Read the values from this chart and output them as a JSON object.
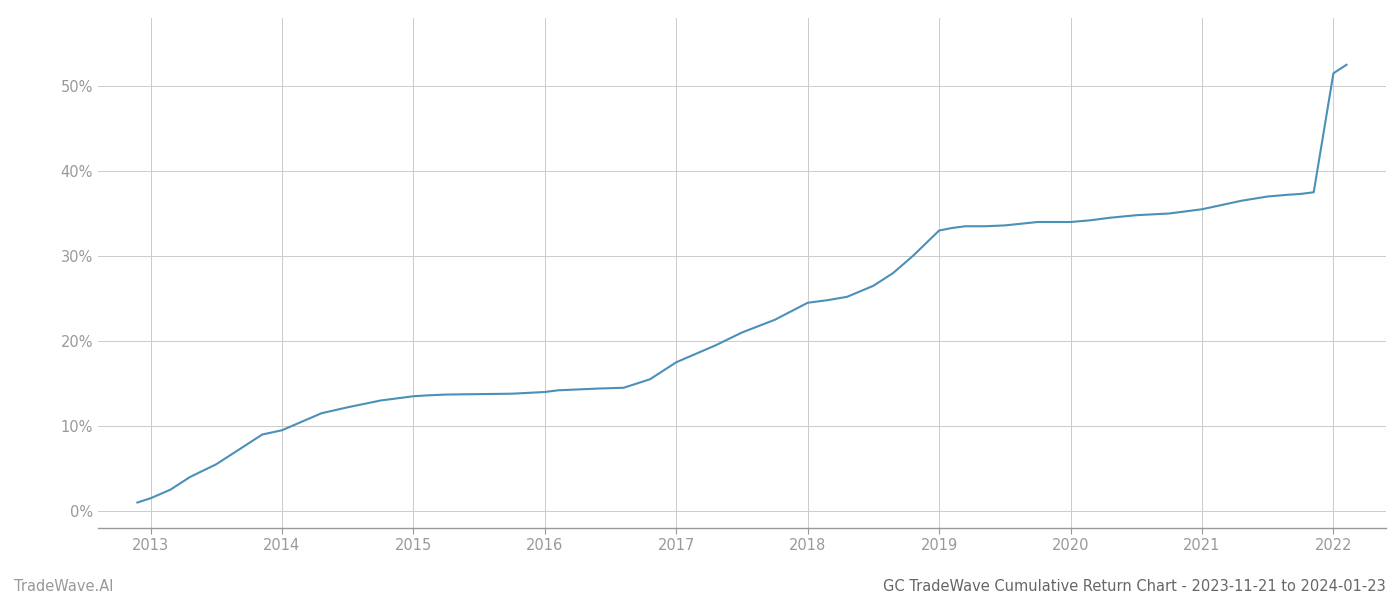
{
  "title": "GC TradeWave Cumulative Return Chart - 2023-11-21 to 2024-01-23",
  "watermark_left": "TradeWave.AI",
  "line_color": "#4a90b8",
  "background_color": "#ffffff",
  "grid_color": "#cccccc",
  "x_values": [
    2012.9,
    2013.0,
    2013.15,
    2013.3,
    2013.5,
    2013.7,
    2013.85,
    2014.0,
    2014.15,
    2014.3,
    2014.5,
    2014.75,
    2015.0,
    2015.1,
    2015.25,
    2015.5,
    2015.75,
    2016.0,
    2016.1,
    2016.25,
    2016.4,
    2016.6,
    2016.8,
    2017.0,
    2017.15,
    2017.3,
    2017.5,
    2017.75,
    2018.0,
    2018.15,
    2018.3,
    2018.5,
    2018.65,
    2018.8,
    2019.0,
    2019.1,
    2019.2,
    2019.35,
    2019.5,
    2019.75,
    2020.0,
    2020.15,
    2020.3,
    2020.5,
    2020.75,
    2021.0,
    2021.15,
    2021.3,
    2021.5,
    2021.65,
    2021.75,
    2021.85,
    2022.0,
    2022.1
  ],
  "y_values": [
    1.0,
    1.5,
    2.5,
    4.0,
    5.5,
    7.5,
    9.0,
    9.5,
    10.5,
    11.5,
    12.2,
    13.0,
    13.5,
    13.6,
    13.7,
    13.75,
    13.8,
    14.0,
    14.2,
    14.3,
    14.4,
    14.5,
    15.5,
    17.5,
    18.5,
    19.5,
    21.0,
    22.5,
    24.5,
    24.8,
    25.2,
    26.5,
    28.0,
    30.0,
    33.0,
    33.3,
    33.5,
    33.5,
    33.6,
    34.0,
    34.0,
    34.2,
    34.5,
    34.8,
    35.0,
    35.5,
    36.0,
    36.5,
    37.0,
    37.2,
    37.3,
    37.5,
    51.5,
    52.5
  ],
  "xlim": [
    2012.6,
    2022.4
  ],
  "ylim": [
    -2,
    58
  ],
  "yticks": [
    0,
    10,
    20,
    30,
    40,
    50
  ],
  "ytick_labels": [
    "0%",
    "10%",
    "20%",
    "30%",
    "40%",
    "50%"
  ],
  "xticks": [
    2013,
    2014,
    2015,
    2016,
    2017,
    2018,
    2019,
    2020,
    2021,
    2022
  ],
  "xtick_labels": [
    "2013",
    "2014",
    "2015",
    "2016",
    "2017",
    "2018",
    "2019",
    "2020",
    "2021",
    "2022"
  ],
  "line_width": 1.5,
  "axis_color": "#999999",
  "tick_color": "#999999",
  "tick_label_color": "#999999",
  "title_fontsize": 10.5,
  "tick_fontsize": 10.5,
  "watermark_fontsize": 10.5,
  "title_color": "#666666"
}
